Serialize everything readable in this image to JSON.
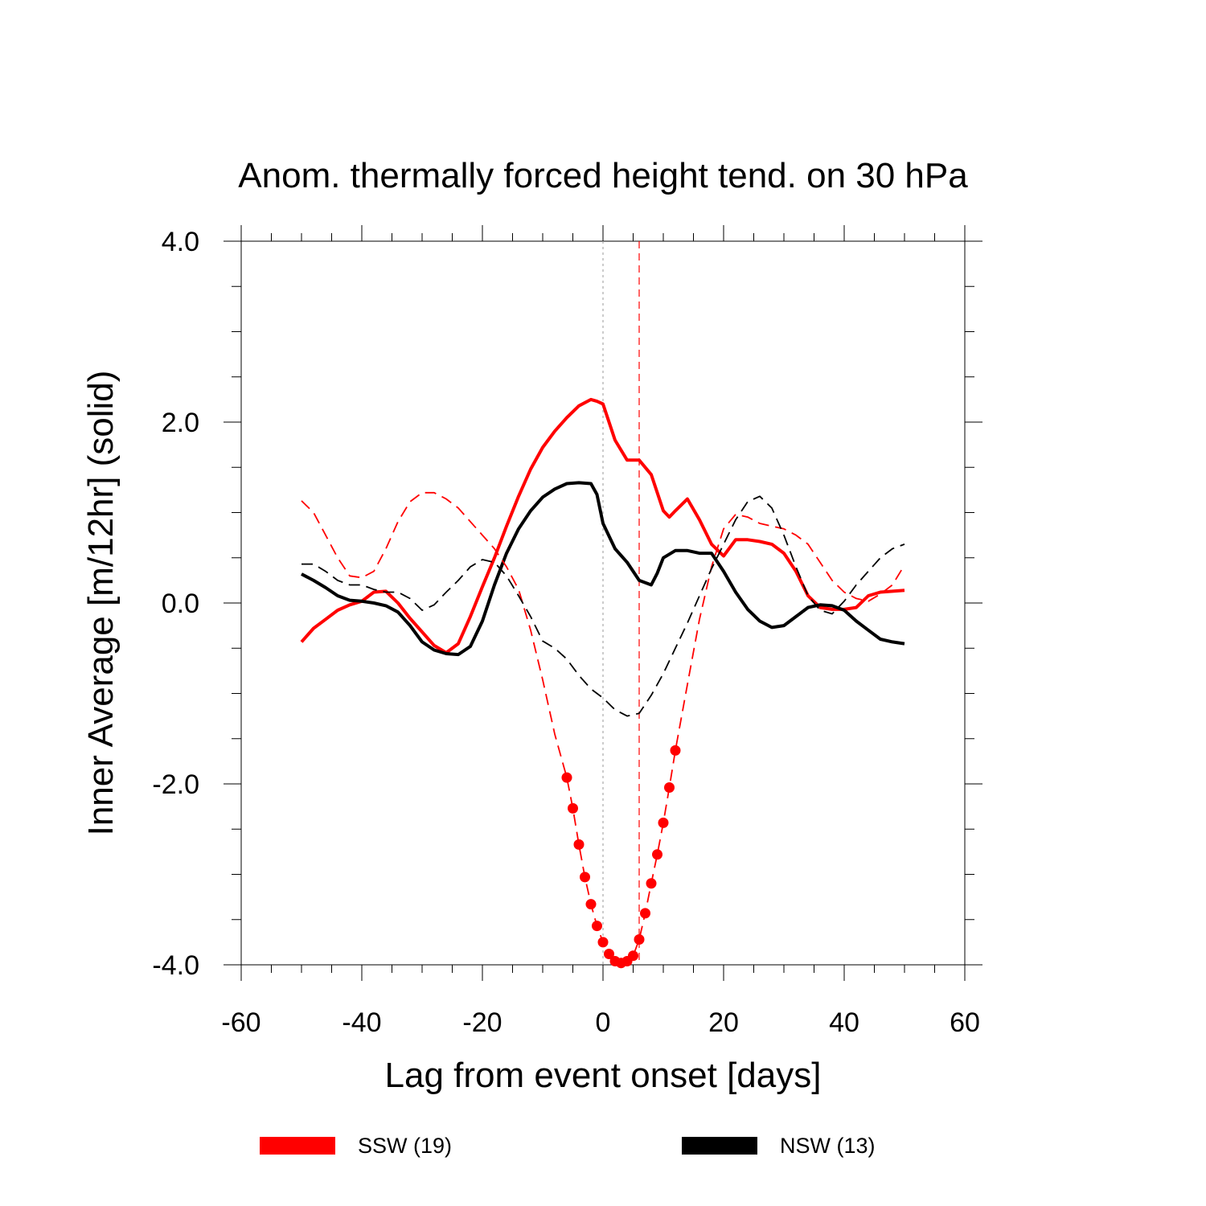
{
  "chart_data": {
    "type": "line",
    "title": "Anom. thermally forced height tend. on 30 hPa",
    "xlabel": "Lag from event onset [days]",
    "ylabel": "Inner Average [m/12hr] (solid)",
    "xlim": [
      -60,
      60
    ],
    "ylim": [
      -4,
      4
    ],
    "x_ticks": [
      -60,
      -40,
      -20,
      0,
      20,
      40,
      60
    ],
    "x_tick_labels": [
      "-60",
      "-40",
      "-20",
      "0",
      "20",
      "40",
      "60"
    ],
    "y_ticks": [
      4,
      2,
      0,
      -2,
      -4
    ],
    "y_tick_labels": [
      "4.0",
      "2.0",
      "0.0",
      "-2.0",
      "-4.0"
    ],
    "grid": false,
    "legend_position": "bottom",
    "legend": [
      {
        "label": "SSW (19)",
        "color": "#ff0000"
      },
      {
        "label": "NSW (13)",
        "color": "#000000"
      }
    ],
    "reference_lines": [
      {
        "x": 0,
        "color": "#aaaaaa",
        "style": "dotted"
      },
      {
        "x": 6,
        "color": "#ff0000",
        "style": "dashed"
      }
    ],
    "series": [
      {
        "name": "SSW (19)",
        "color": "#ff0000",
        "style": "solid",
        "x": [
          -50,
          -48,
          -46,
          -44,
          -42,
          -40,
          -38,
          -36,
          -34,
          -32,
          -30,
          -28,
          -26,
          -24,
          -22,
          -20,
          -18,
          -16,
          -14,
          -12,
          -10,
          -8,
          -6,
          -4,
          -2,
          -1,
          0,
          2,
          4,
          6,
          8,
          10,
          11,
          12,
          14,
          16,
          18,
          20,
          22,
          24,
          26,
          28,
          30,
          32,
          34,
          36,
          38,
          40,
          42,
          44,
          46,
          48,
          50
        ],
        "y": [
          -0.43,
          -0.28,
          -0.18,
          -0.08,
          -0.02,
          0.02,
          0.12,
          0.13,
          0.0,
          -0.17,
          -0.32,
          -0.47,
          -0.55,
          -0.45,
          -0.15,
          0.18,
          0.5,
          0.85,
          1.18,
          1.48,
          1.72,
          1.9,
          2.05,
          2.18,
          2.25,
          2.23,
          2.2,
          1.8,
          1.58,
          1.58,
          1.42,
          1.02,
          0.95,
          1.02,
          1.15,
          0.92,
          0.65,
          0.52,
          0.7,
          0.7,
          0.68,
          0.65,
          0.55,
          0.35,
          0.08,
          -0.05,
          -0.07,
          -0.07,
          -0.05,
          0.08,
          0.12,
          0.13,
          0.14
        ]
      },
      {
        "name": "NSW (13)",
        "color": "#000000",
        "style": "solid",
        "x": [
          -50,
          -48,
          -46,
          -44,
          -42,
          -40,
          -38,
          -36,
          -34,
          -32,
          -30,
          -28,
          -26,
          -24,
          -22,
          -20,
          -18,
          -16,
          -14,
          -12,
          -10,
          -8,
          -6,
          -4,
          -2,
          -1,
          0,
          2,
          4,
          6,
          8,
          9,
          10,
          12,
          14,
          16,
          18,
          20,
          22,
          24,
          26,
          28,
          30,
          32,
          34,
          36,
          38,
          40,
          42,
          44,
          46,
          48,
          50
        ],
        "y": [
          0.32,
          0.25,
          0.17,
          0.08,
          0.03,
          0.02,
          0.0,
          -0.03,
          -0.1,
          -0.25,
          -0.43,
          -0.52,
          -0.56,
          -0.57,
          -0.48,
          -0.2,
          0.2,
          0.55,
          0.82,
          1.02,
          1.17,
          1.26,
          1.32,
          1.33,
          1.32,
          1.2,
          0.88,
          0.6,
          0.45,
          0.25,
          0.2,
          0.33,
          0.5,
          0.58,
          0.58,
          0.55,
          0.55,
          0.35,
          0.12,
          -0.07,
          -0.2,
          -0.27,
          -0.25,
          -0.15,
          -0.05,
          -0.02,
          -0.03,
          -0.08,
          -0.2,
          -0.3,
          -0.4,
          -0.43,
          -0.45
        ]
      },
      {
        "name": "",
        "color": "#ff0000",
        "style": "dashed",
        "x": [
          -50,
          -48,
          -46,
          -44,
          -42,
          -40,
          -38,
          -36,
          -34,
          -32,
          -30,
          -28,
          -26,
          -24,
          -22,
          -20,
          -18,
          -16,
          -14,
          -12,
          -10,
          -8,
          -6,
          -5,
          -4,
          -3,
          -2,
          -1,
          0,
          1,
          2,
          3,
          4,
          5,
          6,
          7,
          8,
          9,
          10,
          11,
          12,
          14,
          16,
          18,
          20,
          22,
          24,
          26,
          28,
          30,
          32,
          34,
          36,
          38,
          40,
          42,
          44,
          46,
          48,
          50
        ],
        "y": [
          1.13,
          1.0,
          0.75,
          0.5,
          0.3,
          0.28,
          0.35,
          0.6,
          0.9,
          1.12,
          1.22,
          1.22,
          1.15,
          1.05,
          0.9,
          0.75,
          0.6,
          0.4,
          0.15,
          -0.3,
          -0.85,
          -1.45,
          -1.93,
          -2.27,
          -2.67,
          -3.03,
          -3.33,
          -3.57,
          -3.75,
          -3.88,
          -3.96,
          -3.98,
          -3.96,
          -3.9,
          -3.72,
          -3.43,
          -3.1,
          -2.78,
          -2.43,
          -2.04,
          -1.63,
          -0.9,
          -0.18,
          0.4,
          0.82,
          0.98,
          0.95,
          0.88,
          0.85,
          0.82,
          0.75,
          0.65,
          0.45,
          0.25,
          0.12,
          0.05,
          0.02,
          0.1,
          0.2,
          0.42
        ]
      },
      {
        "name": "",
        "color": "#000000",
        "style": "dashed",
        "x": [
          -50,
          -48,
          -46,
          -44,
          -42,
          -40,
          -38,
          -36,
          -34,
          -32,
          -30,
          -28,
          -26,
          -24,
          -22,
          -20,
          -18,
          -16,
          -14,
          -12,
          -10,
          -8,
          -6,
          -4,
          -2,
          0,
          2,
          4,
          6,
          8,
          10,
          12,
          14,
          16,
          18,
          20,
          22,
          24,
          26,
          28,
          30,
          32,
          34,
          36,
          38,
          40,
          42,
          44,
          46,
          48,
          50
        ],
        "y": [
          0.43,
          0.43,
          0.35,
          0.25,
          0.2,
          0.2,
          0.15,
          0.12,
          0.12,
          0.05,
          -0.08,
          -0.02,
          0.12,
          0.25,
          0.4,
          0.48,
          0.45,
          0.3,
          0.08,
          -0.15,
          -0.42,
          -0.5,
          -0.62,
          -0.8,
          -0.95,
          -1.05,
          -1.18,
          -1.25,
          -1.22,
          -1.02,
          -0.78,
          -0.5,
          -0.22,
          0.08,
          0.38,
          0.65,
          0.92,
          1.12,
          1.18,
          1.05,
          0.75,
          0.4,
          0.08,
          -0.08,
          -0.12,
          0.02,
          0.2,
          0.35,
          0.5,
          0.6,
          0.65
        ]
      }
    ],
    "markers": {
      "color": "#ff0000",
      "x": [
        -6,
        -5,
        -4,
        -3,
        -2,
        -1,
        0,
        1,
        2,
        3,
        4,
        5,
        6,
        7,
        8,
        9,
        10,
        11,
        12
      ],
      "y": [
        -1.93,
        -2.27,
        -2.67,
        -3.03,
        -3.33,
        -3.57,
        -3.75,
        -3.88,
        -3.96,
        -3.98,
        -3.96,
        -3.9,
        -3.72,
        -3.43,
        -3.1,
        -2.78,
        -2.43,
        -2.04,
        -1.63
      ]
    }
  }
}
